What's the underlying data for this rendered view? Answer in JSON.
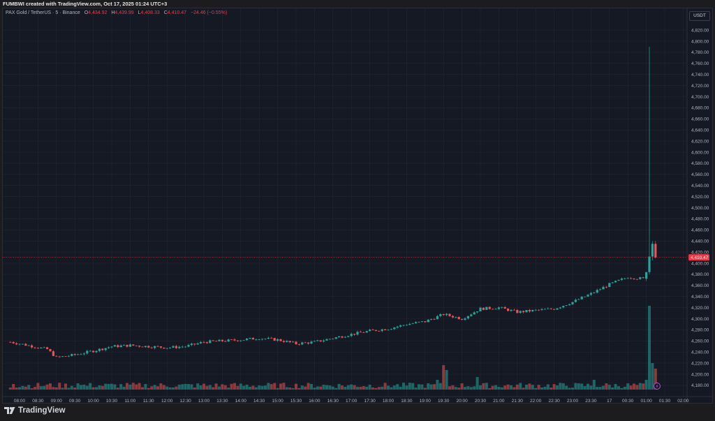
{
  "credit": "FUMBWI created with TradingView.com, Oct 17, 2025 01:24 UTC+3",
  "legend": {
    "symbol": "PAX Gold / TetherUS · 5 · Binance",
    "o_label": "O",
    "o": "4,434.92",
    "h_label": "H",
    "h": "4,439.99",
    "l_label": "L",
    "l": "4,408.33",
    "c_label": "C",
    "c": "4,410.47",
    "change": "−24.46 (−0.55%)"
  },
  "currency": "USDT",
  "last_price_label": "4,410.47",
  "footer": {
    "brand": "TradingView"
  },
  "colors": {
    "up": "#26a69a",
    "down": "#ef5350",
    "background": "#151924",
    "grid": "#232735",
    "last_price": "#f23645"
  },
  "chart_data": {
    "type": "candlestick",
    "interval": "5",
    "ylim": [
      4170,
      4830
    ],
    "y_ticks": [
      "4,820.00",
      "4,800.00",
      "4,780.00",
      "4,760.00",
      "4,740.00",
      "4,720.00",
      "4,700.00",
      "4,680.00",
      "4,660.00",
      "4,640.00",
      "4,620.00",
      "4,600.00",
      "4,580.00",
      "4,560.00",
      "4,540.00",
      "4,520.00",
      "4,500.00",
      "4,480.00",
      "4,460.00",
      "4,440.00",
      "4,420.00",
      "4,400.00",
      "4,380.00",
      "4,360.00",
      "4,340.00",
      "4,320.00",
      "4,300.00",
      "4,280.00",
      "4,260.00",
      "4,240.00",
      "4,220.00",
      "4,200.00",
      "4,180.00"
    ],
    "x_ticks": [
      "08:00",
      "08:30",
      "09:00",
      "09:30",
      "10:00",
      "10:30",
      "11:00",
      "11:30",
      "12:00",
      "12:30",
      "13:00",
      "13:30",
      "14:00",
      "14:30",
      "15:00",
      "15:30",
      "16:00",
      "16:30",
      "17:00",
      "17:30",
      "18:00",
      "18:30",
      "19:00",
      "19:30",
      "20:00",
      "20:30",
      "21:00",
      "21:30",
      "22:00",
      "22:30",
      "23:00",
      "23:30",
      "17",
      "00:30",
      "01:00",
      "01:30",
      "02:00"
    ],
    "close_path": [
      [
        "07:45",
        4258
      ],
      [
        "08:00",
        4255
      ],
      [
        "08:45",
        4245
      ],
      [
        "09:00",
        4230
      ],
      [
        "09:30",
        4235
      ],
      [
        "10:00",
        4242
      ],
      [
        "10:30",
        4250
      ],
      [
        "11:00",
        4252
      ],
      [
        "12:00",
        4248
      ],
      [
        "12:30",
        4250
      ],
      [
        "13:00",
        4258
      ],
      [
        "14:00",
        4262
      ],
      [
        "14:30",
        4265
      ],
      [
        "15:00",
        4262
      ],
      [
        "15:30",
        4255
      ],
      [
        "16:00",
        4258
      ],
      [
        "16:30",
        4265
      ],
      [
        "17:00",
        4272
      ],
      [
        "17:30",
        4278
      ],
      [
        "18:00",
        4282
      ],
      [
        "18:30",
        4290
      ],
      [
        "19:00",
        4295
      ],
      [
        "19:30",
        4308
      ],
      [
        "20:00",
        4300
      ],
      [
        "20:30",
        4318
      ],
      [
        "21:00",
        4320
      ],
      [
        "21:30",
        4312
      ],
      [
        "22:00",
        4315
      ],
      [
        "22:30",
        4318
      ],
      [
        "23:00",
        4330
      ],
      [
        "23:30",
        4345
      ],
      [
        "00:00",
        4362
      ],
      [
        "00:30",
        4375
      ],
      [
        "00:55",
        4372
      ]
    ],
    "final_candles": [
      {
        "time": "01:00",
        "o": 4372,
        "h": 4382,
        "l": 4368,
        "c": 4384
      },
      {
        "time": "01:05",
        "o": 4384,
        "h": 4790,
        "l": 4380,
        "c": 4412
      },
      {
        "time": "01:10",
        "o": 4412,
        "h": 4440,
        "l": 4405,
        "c": 4435
      },
      {
        "time": "01:15",
        "o": 4434.92,
        "h": 4439.99,
        "l": 4408.33,
        "c": 4410.47
      }
    ],
    "volume_spikes": [
      [
        "19:30",
        35
      ],
      [
        "19:35",
        28
      ],
      [
        "19:20",
        14
      ],
      [
        "20:25",
        18
      ],
      [
        "01:00",
        14
      ],
      [
        "01:05",
        120
      ],
      [
        "01:10",
        38
      ],
      [
        "01:15",
        30
      ],
      [
        "23:35",
        14
      ],
      [
        "07:50",
        8
      ],
      [
        "09:35",
        9
      ]
    ],
    "last_price": 4410.47
  }
}
